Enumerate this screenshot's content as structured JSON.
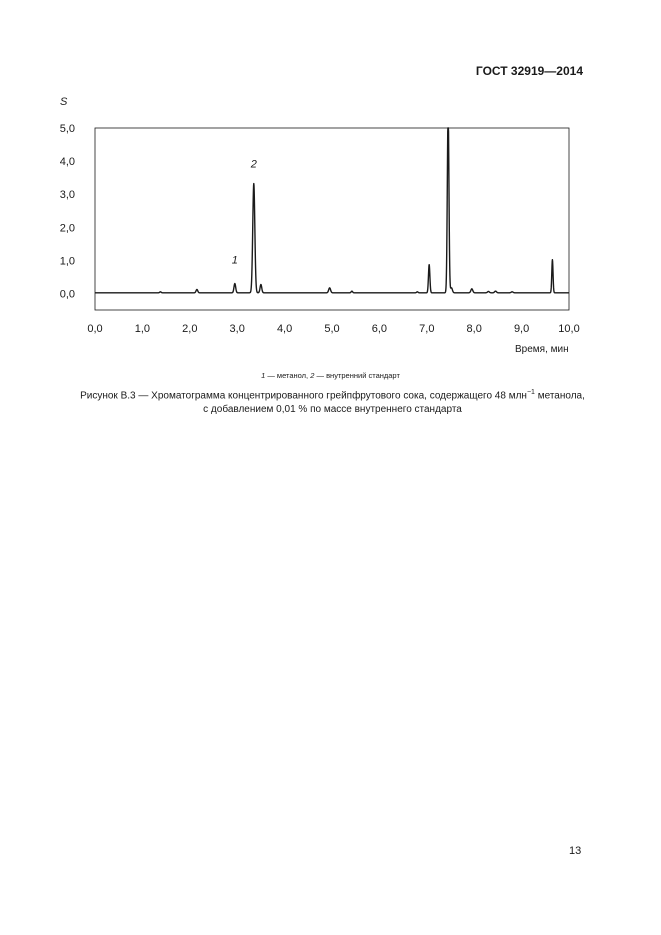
{
  "header": {
    "standard": "ГОСТ 32919—2014"
  },
  "chart_data": {
    "type": "line",
    "ylabel": "S",
    "xlabel": "Время, мин",
    "xlim": [
      0.0,
      10.0
    ],
    "ylim": [
      -0.5,
      5.0
    ],
    "x_ticks": [
      "0,0",
      "1,0",
      "2,0",
      "3,0",
      "4,0",
      "5,0",
      "6,0",
      "7,0",
      "8,0",
      "9,0",
      "10,0"
    ],
    "y_ticks": [
      "0,0",
      "1,0",
      "2,0",
      "3,0",
      "4,0",
      "5,0"
    ],
    "baseline": 0.02,
    "peaks": [
      {
        "x": 1.38,
        "h": 0.03,
        "w": 0.015
      },
      {
        "x": 2.15,
        "h": 0.1,
        "w": 0.018
      },
      {
        "x": 2.95,
        "h": 0.28,
        "w": 0.018
      },
      {
        "x": 3.35,
        "h": 3.3,
        "w": 0.022
      },
      {
        "x": 3.5,
        "h": 0.25,
        "w": 0.018
      },
      {
        "x": 4.95,
        "h": 0.15,
        "w": 0.02
      },
      {
        "x": 5.42,
        "h": 0.05,
        "w": 0.015
      },
      {
        "x": 6.8,
        "h": 0.03,
        "w": 0.015
      },
      {
        "x": 7.05,
        "h": 0.85,
        "w": 0.015
      },
      {
        "x": 7.45,
        "h": 5.5,
        "w": 0.017
      },
      {
        "x": 7.52,
        "h": 0.15,
        "w": 0.02
      },
      {
        "x": 7.95,
        "h": 0.12,
        "w": 0.02
      },
      {
        "x": 8.3,
        "h": 0.04,
        "w": 0.02
      },
      {
        "x": 8.45,
        "h": 0.05,
        "w": 0.02
      },
      {
        "x": 8.8,
        "h": 0.03,
        "w": 0.02
      },
      {
        "x": 9.65,
        "h": 1.0,
        "w": 0.013
      }
    ],
    "annotations": [
      {
        "label": "1",
        "x": 2.95,
        "y": 0.9
      },
      {
        "label": "2",
        "x": 3.35,
        "y": 3.8
      }
    ]
  },
  "legend_note": {
    "n1": "1",
    "t1": " — метанол, ",
    "n2": "2",
    "t2": " — внутренний стандарт"
  },
  "caption": {
    "line1_prefix": "Рисунок В.3 — Хроматограмма концентрированного грейпфрутового сока, содержащего 48 млн",
    "sup": "−1",
    "line1_suffix": " метанола,",
    "line2": "с добавлением 0,01 % по массе внутреннего стандарта"
  },
  "page_number": "13"
}
